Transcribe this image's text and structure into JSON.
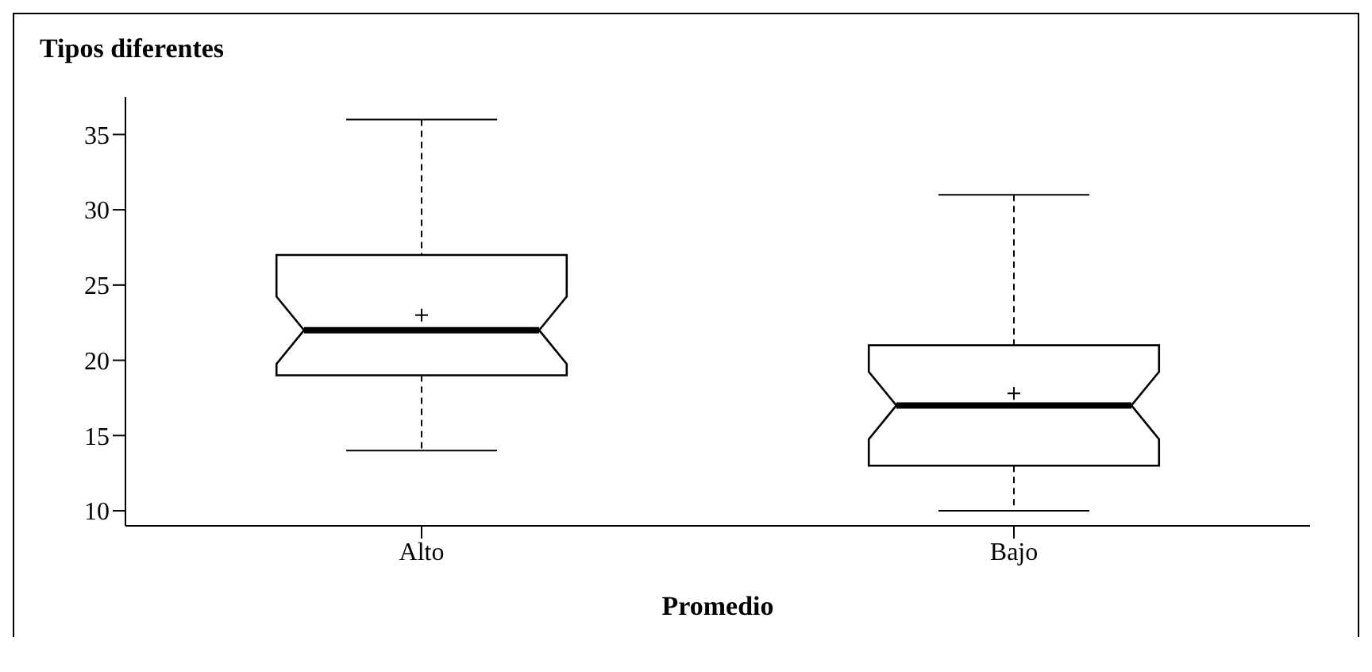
{
  "chart_data": {
    "type": "box",
    "title": "Tipos diferentes",
    "xlabel": "Promedio",
    "categories": [
      "Alto",
      "Bajo"
    ],
    "boxes": [
      {
        "low": 14,
        "q1": 19,
        "median": 22,
        "q3": 27,
        "high": 36,
        "mean": 23
      },
      {
        "low": 10,
        "q1": 13,
        "median": 17,
        "q3": 21,
        "high": 31,
        "mean": 17.8
      }
    ],
    "ylim": [
      9,
      37.5
    ],
    "yticks": [
      10,
      15,
      20,
      25,
      30,
      35
    ],
    "grid": false
  }
}
